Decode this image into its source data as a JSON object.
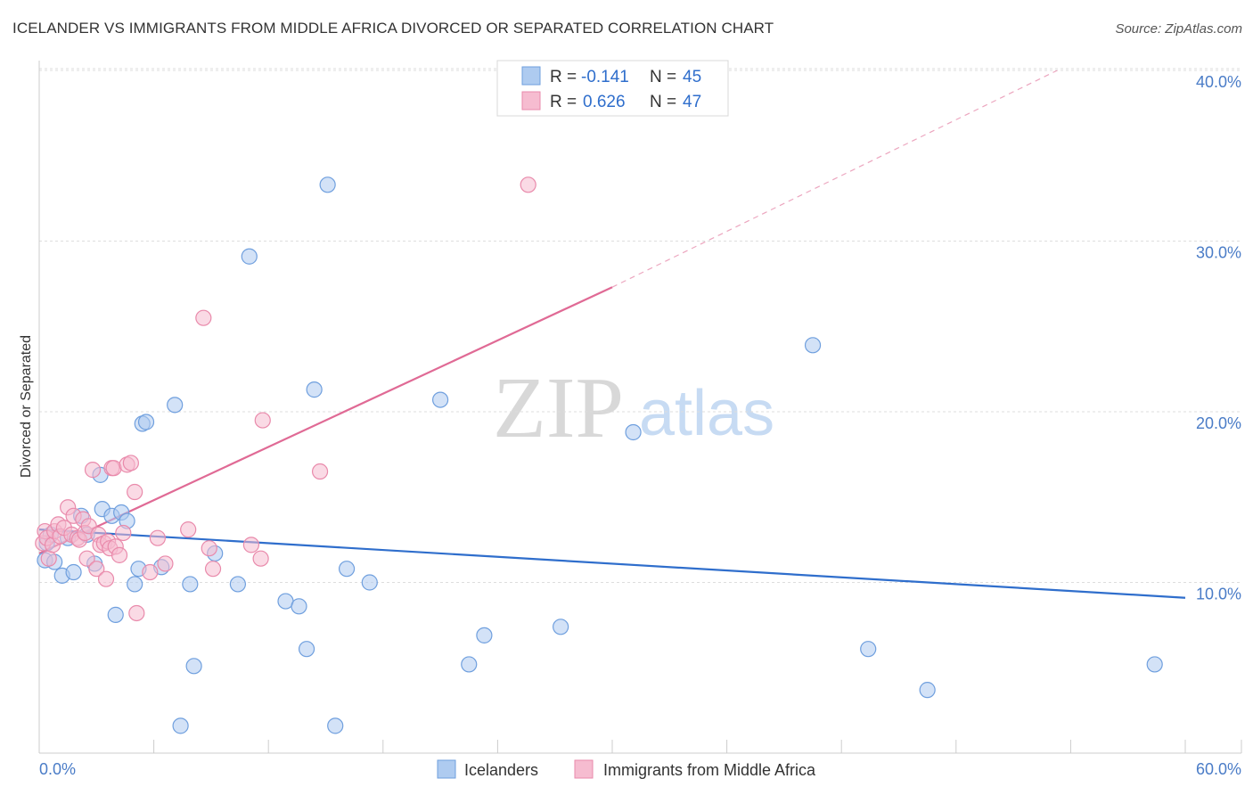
{
  "title": "ICELANDER VS IMMIGRANTS FROM MIDDLE AFRICA DIVORCED OR SEPARATED CORRELATION CHART",
  "source": "Source: ZipAtlas.com",
  "watermark": {
    "zip": "ZIP",
    "atlas": "atlas"
  },
  "colors": {
    "blue_fill": "#aecbf0",
    "blue_stroke": "#6f9fde",
    "blue_line": "#2f6ecc",
    "pink_fill": "#f6bcd0",
    "pink_stroke": "#e98aab",
    "pink_line": "#e06a95",
    "tick_text": "#4a7cc7",
    "grid": "#dddddd"
  },
  "legend": {
    "r_label": "R =",
    "n_label": "N =",
    "series": [
      {
        "name": "Icelanders",
        "r": "-0.141",
        "n": "45"
      },
      {
        "name": "Immigrants from Middle Africa",
        "r": "0.626",
        "n": "47"
      }
    ]
  },
  "chart_data": {
    "type": "scatter",
    "title": "ICELANDER VS IMMIGRANTS FROM MIDDLE AFRICA DIVORCED OR SEPARATED CORRELATION CHART",
    "xlabel": "",
    "ylabel": "Divorced or Separated",
    "xlim": [
      0,
      60
    ],
    "ylim": [
      0,
      40
    ],
    "x_tick_labels": {
      "min": "0.0%",
      "max": "60.0%"
    },
    "y_ticks": [
      {
        "value": 10,
        "label": "10.0%"
      },
      {
        "value": 20,
        "label": "20.0%"
      },
      {
        "value": 30,
        "label": "30.0%"
      },
      {
        "value": 40,
        "label": "40.0%"
      }
    ],
    "series": [
      {
        "name": "Icelanders",
        "points": [
          [
            0.3,
            11.3
          ],
          [
            0.4,
            12.3
          ],
          [
            0.6,
            12.8
          ],
          [
            0.8,
            11.2
          ],
          [
            1.2,
            10.4
          ],
          [
            1.5,
            12.6
          ],
          [
            1.8,
            10.6
          ],
          [
            2.2,
            13.9
          ],
          [
            2.5,
            12.8
          ],
          [
            2.9,
            11.1
          ],
          [
            3.2,
            16.3
          ],
          [
            3.3,
            14.3
          ],
          [
            3.8,
            13.9
          ],
          [
            4.0,
            8.1
          ],
          [
            4.3,
            14.1
          ],
          [
            4.6,
            13.6
          ],
          [
            5.0,
            9.9
          ],
          [
            5.2,
            10.8
          ],
          [
            5.4,
            19.3
          ],
          [
            5.6,
            19.4
          ],
          [
            6.4,
            10.9
          ],
          [
            7.1,
            20.4
          ],
          [
            7.4,
            1.6
          ],
          [
            7.9,
            9.9
          ],
          [
            8.1,
            5.1
          ],
          [
            9.2,
            11.7
          ],
          [
            10.4,
            9.9
          ],
          [
            11.0,
            29.1
          ],
          [
            12.9,
            8.9
          ],
          [
            13.6,
            8.6
          ],
          [
            14.0,
            6.1
          ],
          [
            14.4,
            21.3
          ],
          [
            15.1,
            33.3
          ],
          [
            15.5,
            1.6
          ],
          [
            16.1,
            10.8
          ],
          [
            17.3,
            10.0
          ],
          [
            21.0,
            20.7
          ],
          [
            22.5,
            5.2
          ],
          [
            23.3,
            6.9
          ],
          [
            27.3,
            7.4
          ],
          [
            31.1,
            18.8
          ],
          [
            40.5,
            23.9
          ],
          [
            43.4,
            6.1
          ],
          [
            46.5,
            3.7
          ],
          [
            58.4,
            5.2
          ]
        ],
        "trend": {
          "x": [
            0,
            60
          ],
          "y": [
            13.1,
            9.1
          ]
        }
      },
      {
        "name": "Immigrants from Middle Africa",
        "points": [
          [
            0.2,
            12.3
          ],
          [
            0.3,
            13.0
          ],
          [
            0.4,
            12.6
          ],
          [
            0.5,
            11.4
          ],
          [
            0.7,
            12.2
          ],
          [
            0.8,
            13.0
          ],
          [
            1.0,
            13.4
          ],
          [
            1.1,
            12.7
          ],
          [
            1.3,
            13.2
          ],
          [
            1.5,
            14.4
          ],
          [
            1.7,
            12.8
          ],
          [
            1.8,
            13.9
          ],
          [
            2.0,
            12.6
          ],
          [
            2.1,
            12.5
          ],
          [
            2.3,
            13.7
          ],
          [
            2.4,
            12.9
          ],
          [
            2.5,
            11.4
          ],
          [
            2.6,
            13.3
          ],
          [
            2.8,
            16.6
          ],
          [
            3.0,
            10.8
          ],
          [
            3.1,
            12.8
          ],
          [
            3.2,
            12.2
          ],
          [
            3.4,
            12.3
          ],
          [
            3.5,
            10.2
          ],
          [
            3.6,
            12.4
          ],
          [
            3.7,
            12.0
          ],
          [
            3.8,
            16.7
          ],
          [
            3.9,
            16.7
          ],
          [
            4.0,
            12.1
          ],
          [
            4.2,
            11.6
          ],
          [
            4.4,
            12.9
          ],
          [
            4.6,
            16.9
          ],
          [
            4.8,
            17.0
          ],
          [
            5.0,
            15.3
          ],
          [
            5.1,
            8.2
          ],
          [
            5.8,
            10.6
          ],
          [
            6.6,
            11.1
          ],
          [
            7.8,
            13.1
          ],
          [
            8.6,
            25.5
          ],
          [
            8.9,
            12.0
          ],
          [
            9.1,
            10.8
          ],
          [
            11.1,
            12.2
          ],
          [
            11.6,
            11.4
          ],
          [
            11.7,
            19.5
          ],
          [
            14.7,
            16.5
          ],
          [
            25.6,
            33.3
          ],
          [
            6.2,
            12.6
          ]
        ],
        "trend": {
          "x": [
            0,
            30
          ],
          "y": [
            11.7,
            27.3
          ]
        },
        "trend_extension": {
          "x": [
            30,
            53.3
          ],
          "y": [
            27.3,
            40.0
          ]
        }
      }
    ]
  }
}
